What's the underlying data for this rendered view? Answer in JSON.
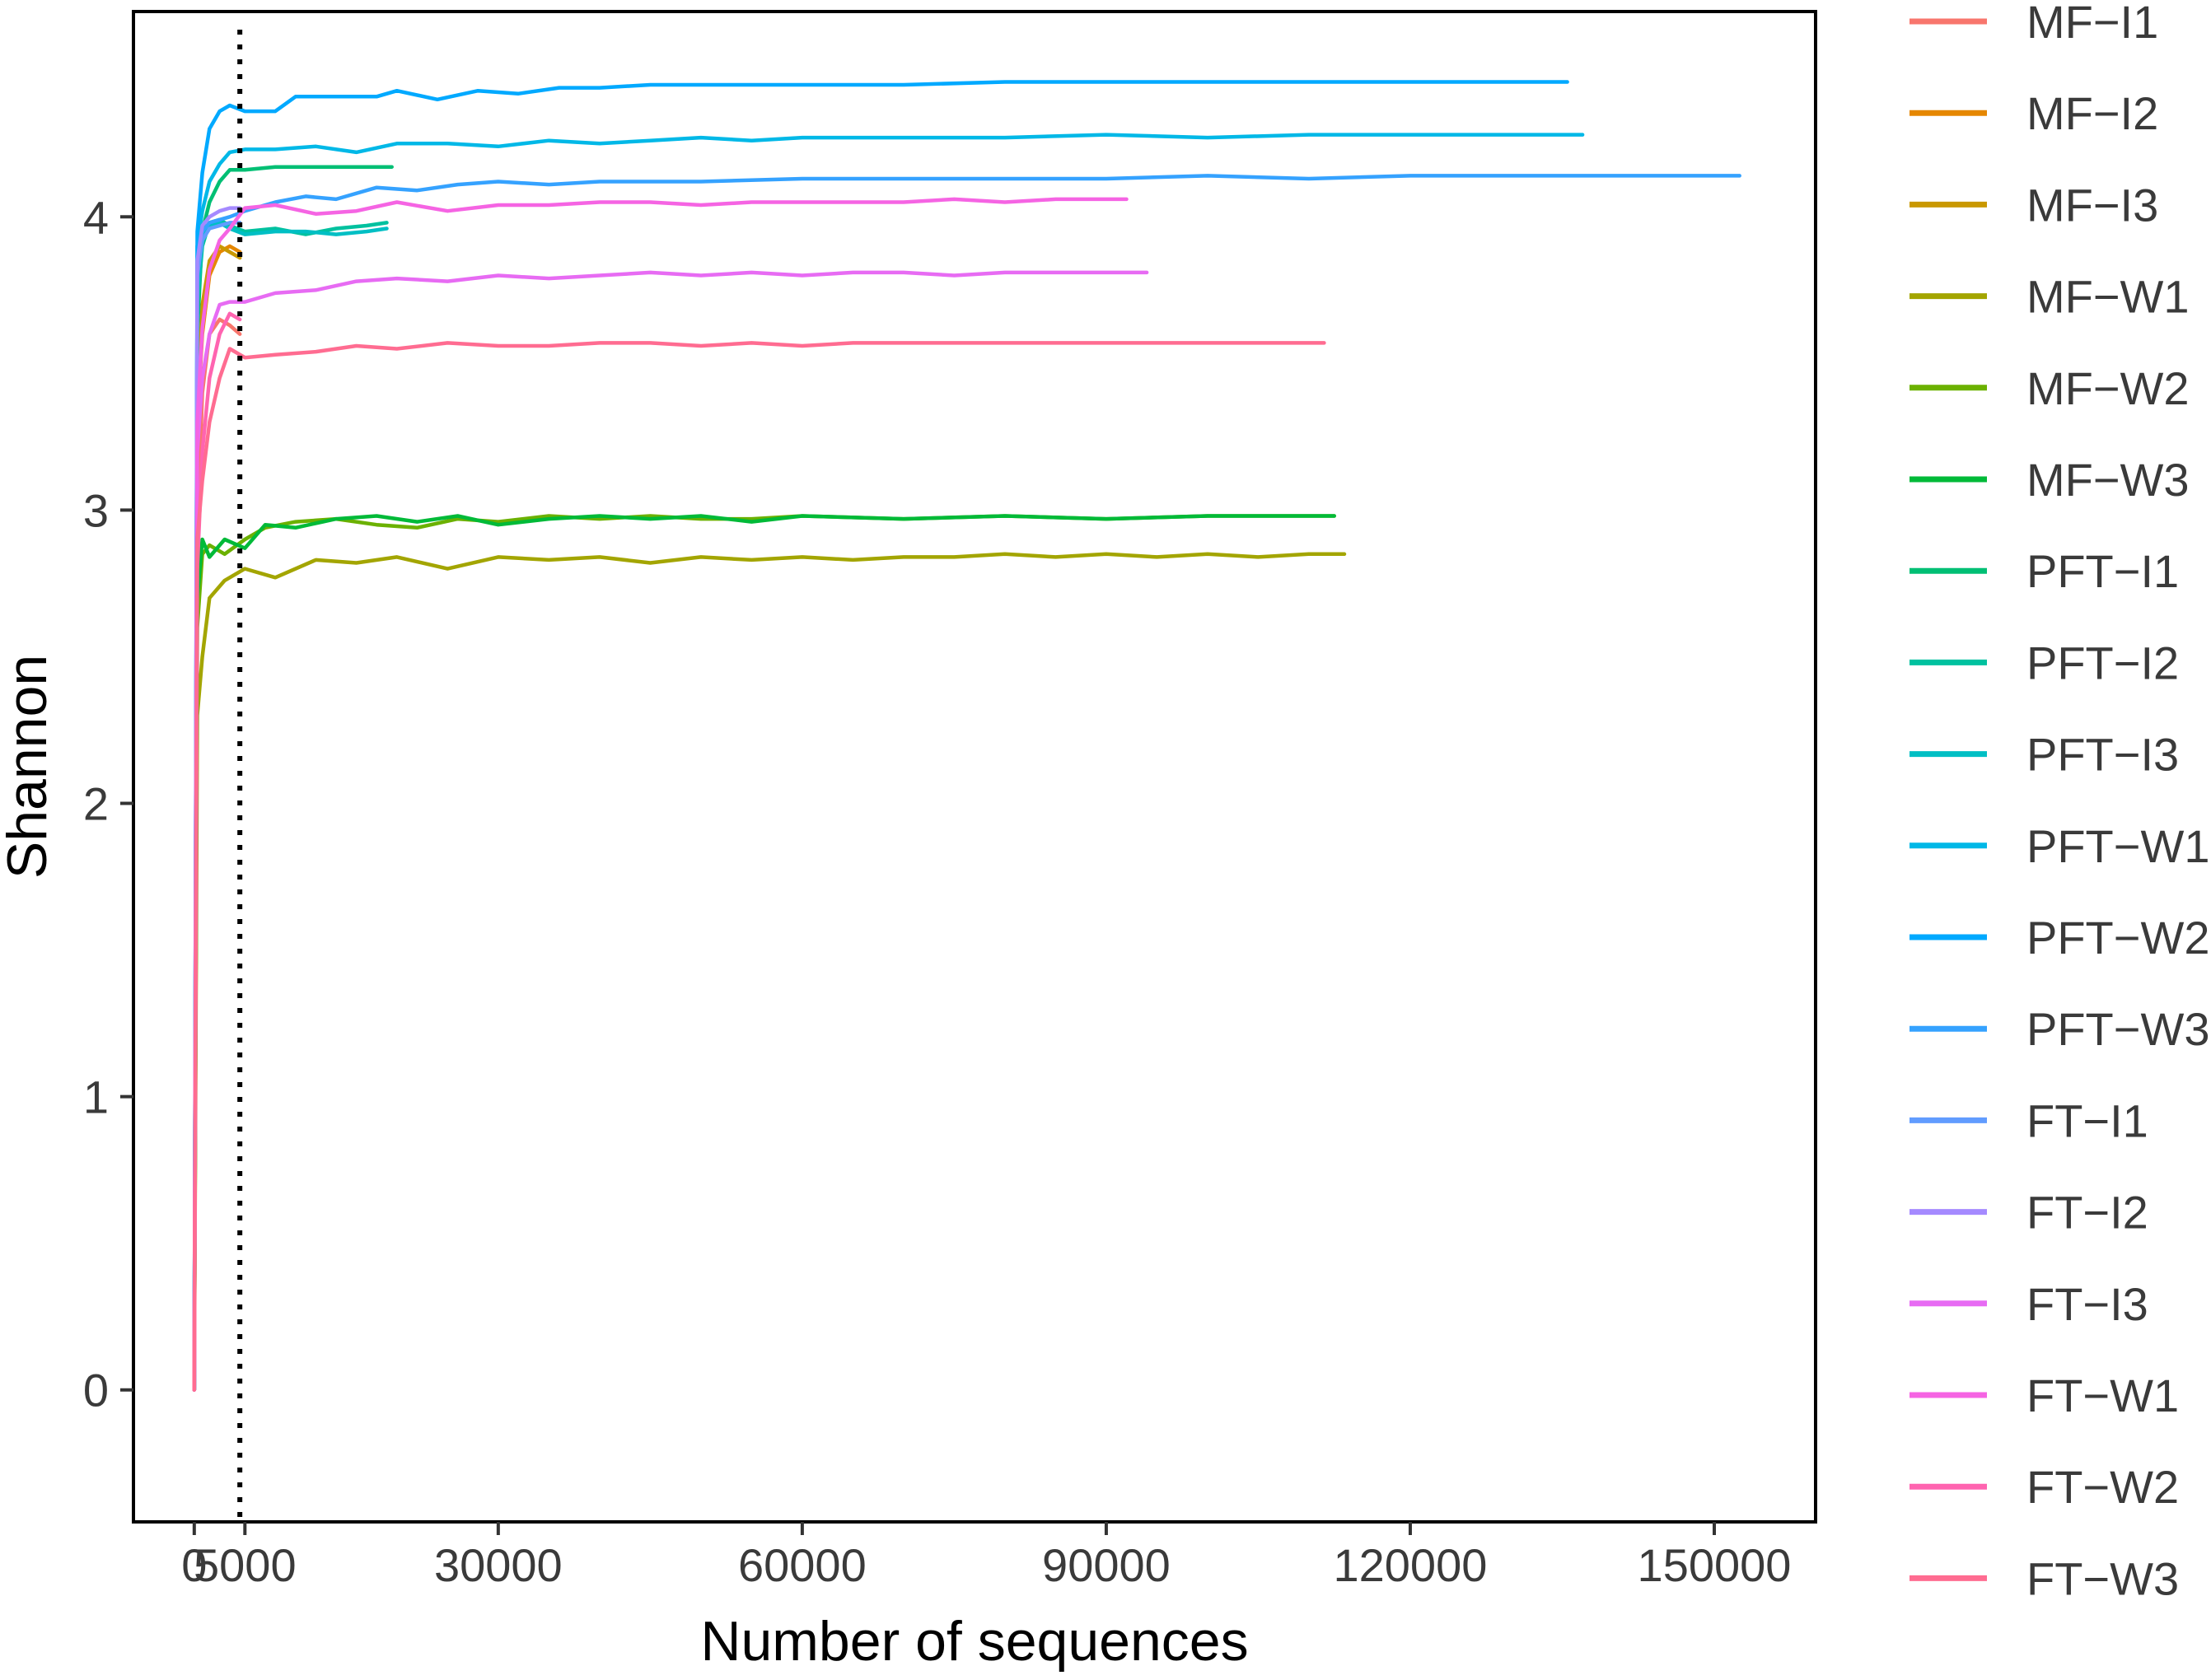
{
  "chart_data": {
    "type": "line",
    "title": "",
    "xlabel": "Number of sequences",
    "ylabel": "Shannon",
    "xlim": [
      -6000,
      160000
    ],
    "ylim": [
      -0.45,
      4.7
    ],
    "xticks": [
      0,
      5000,
      30000,
      60000,
      90000,
      120000,
      150000
    ],
    "xtick_labels": [
      "0",
      "5000",
      "30000",
      "60000",
      "90000",
      "120000",
      "150000"
    ],
    "yticks": [
      0,
      1,
      2,
      3,
      4
    ],
    "ytick_labels": [
      "0",
      "1",
      "2",
      "3",
      "4"
    ],
    "reference_line": {
      "x": 4500,
      "style": "dotted"
    },
    "grid": false,
    "legend": "right",
    "series": [
      {
        "name": "MF−I1",
        "color": "#F8766D",
        "x": [
          0,
          300,
          800,
          1500,
          2500,
          3500,
          4500
        ],
        "y": [
          0,
          2.9,
          3.4,
          3.6,
          3.65,
          3.63,
          3.6
        ]
      },
      {
        "name": "MF−I2",
        "color": "#E58700",
        "x": [
          0,
          300,
          800,
          1500,
          2500,
          3500,
          4500
        ],
        "y": [
          0,
          3.3,
          3.6,
          3.8,
          3.88,
          3.9,
          3.88
        ]
      },
      {
        "name": "MF−I3",
        "color": "#C99800",
        "x": [
          0,
          300,
          800,
          1500,
          2500,
          3500,
          4500
        ],
        "y": [
          0,
          3.35,
          3.7,
          3.85,
          3.9,
          3.88,
          3.86
        ]
      },
      {
        "name": "MF−W1",
        "color": "#A3A500",
        "x": [
          0,
          300,
          800,
          1500,
          3000,
          5000,
          8000,
          12000,
          16000,
          20000,
          25000,
          30000,
          35000,
          40000,
          45000,
          50000,
          55000,
          60000,
          65000,
          70000,
          75000,
          80000,
          85000,
          90000,
          95000,
          100000,
          105000,
          110000,
          113500
        ],
        "y": [
          0,
          2.3,
          2.5,
          2.7,
          2.76,
          2.8,
          2.77,
          2.83,
          2.82,
          2.84,
          2.8,
          2.84,
          2.83,
          2.84,
          2.82,
          2.84,
          2.83,
          2.84,
          2.83,
          2.84,
          2.84,
          2.85,
          2.84,
          2.85,
          2.84,
          2.85,
          2.84,
          2.85,
          2.85
        ]
      },
      {
        "name": "MF−W2",
        "color": "#6BB100",
        "x": [
          0,
          300,
          800,
          1500,
          3000,
          5000,
          7000,
          10000,
          14000,
          18000,
          22000,
          26000,
          30000,
          35000,
          40000,
          45000,
          50000,
          55000,
          60000,
          70000,
          80000,
          90000,
          100000,
          110000,
          112500
        ],
        "y": [
          0,
          2.6,
          2.85,
          2.88,
          2.85,
          2.9,
          2.94,
          2.96,
          2.97,
          2.95,
          2.94,
          2.97,
          2.96,
          2.98,
          2.97,
          2.98,
          2.97,
          2.97,
          2.98,
          2.97,
          2.98,
          2.97,
          2.98,
          2.98,
          2.98
        ]
      },
      {
        "name": "MF−W3",
        "color": "#00BA38",
        "x": [
          0,
          300,
          800,
          1500,
          3000,
          5000,
          7000,
          10000,
          14000,
          18000,
          22000,
          26000,
          30000,
          35000,
          40000,
          45000,
          50000,
          55000,
          60000,
          70000,
          80000,
          90000,
          100000,
          110000,
          112500
        ],
        "y": [
          0,
          2.7,
          2.9,
          2.84,
          2.9,
          2.87,
          2.95,
          2.94,
          2.97,
          2.98,
          2.96,
          2.98,
          2.95,
          2.97,
          2.98,
          2.97,
          2.98,
          2.96,
          2.98,
          2.97,
          2.98,
          2.97,
          2.98,
          2.98,
          2.98
        ]
      },
      {
        "name": "PFT−I1",
        "color": "#00BF74",
        "x": [
          0,
          300,
          800,
          1500,
          2500,
          3500,
          5000,
          8000,
          11000,
          14000,
          17000,
          19500
        ],
        "y": [
          0,
          3.6,
          3.95,
          4.05,
          4.12,
          4.16,
          4.16,
          4.17,
          4.17,
          4.17,
          4.17,
          4.17
        ]
      },
      {
        "name": "PFT−I2",
        "color": "#00C19F",
        "x": [
          0,
          300,
          800,
          1500,
          2500,
          3500,
          5000,
          8000,
          11000,
          14000,
          17000,
          19000
        ],
        "y": [
          0,
          3.7,
          3.9,
          3.98,
          3.99,
          3.97,
          3.95,
          3.96,
          3.94,
          3.96,
          3.97,
          3.98
        ]
      },
      {
        "name": "PFT−I3",
        "color": "#00BFC4",
        "x": [
          0,
          300,
          800,
          1500,
          2500,
          3500,
          5000,
          8000,
          11000,
          14000,
          17000,
          19000
        ],
        "y": [
          0,
          3.75,
          3.92,
          3.97,
          3.98,
          3.96,
          3.94,
          3.95,
          3.95,
          3.94,
          3.95,
          3.96
        ]
      },
      {
        "name": "PFT−W1",
        "color": "#00B8E7",
        "x": [
          0,
          300,
          800,
          1500,
          2500,
          3500,
          5000,
          8000,
          12000,
          16000,
          20000,
          25000,
          30000,
          35000,
          40000,
          45000,
          50000,
          55000,
          60000,
          70000,
          80000,
          90000,
          100000,
          110000,
          120000,
          130000,
          137000
        ],
        "y": [
          0,
          3.9,
          4.02,
          4.12,
          4.18,
          4.22,
          4.23,
          4.23,
          4.24,
          4.22,
          4.25,
          4.25,
          4.24,
          4.26,
          4.25,
          4.26,
          4.27,
          4.26,
          4.27,
          4.27,
          4.27,
          4.28,
          4.27,
          4.28,
          4.28,
          4.28,
          4.28
        ]
      },
      {
        "name": "PFT−W2",
        "color": "#00A9FF",
        "x": [
          0,
          300,
          800,
          1500,
          2500,
          3500,
          5000,
          8000,
          10000,
          14000,
          18000,
          20000,
          24000,
          28000,
          32000,
          36000,
          40000,
          45000,
          50000,
          60000,
          70000,
          80000,
          90000,
          100000,
          110000,
          120000,
          130000,
          135500
        ],
        "y": [
          0,
          3.95,
          4.15,
          4.3,
          4.36,
          4.38,
          4.36,
          4.36,
          4.41,
          4.41,
          4.41,
          4.43,
          4.4,
          4.43,
          4.42,
          4.44,
          4.44,
          4.45,
          4.45,
          4.45,
          4.45,
          4.46,
          4.46,
          4.46,
          4.46,
          4.46,
          4.46,
          4.46
        ]
      },
      {
        "name": "PFT−W3",
        "color": "#35A2FF",
        "x": [
          0,
          300,
          800,
          1500,
          2500,
          3500,
          5000,
          8000,
          11000,
          14000,
          18000,
          22000,
          26000,
          30000,
          35000,
          40000,
          45000,
          50000,
          60000,
          70000,
          80000,
          90000,
          100000,
          110000,
          120000,
          130000,
          140000,
          150000,
          152500
        ],
        "y": [
          0,
          3.85,
          3.95,
          3.98,
          3.99,
          4.0,
          4.02,
          4.05,
          4.07,
          4.06,
          4.1,
          4.09,
          4.11,
          4.12,
          4.11,
          4.12,
          4.12,
          4.12,
          4.13,
          4.13,
          4.13,
          4.13,
          4.14,
          4.13,
          4.14,
          4.14,
          4.14,
          4.14,
          4.14
        ]
      },
      {
        "name": "FT−I1",
        "color": "#619CFF",
        "x": [
          0,
          300,
          800,
          1500,
          2500,
          3500,
          4500
        ],
        "y": [
          0,
          3.8,
          3.92,
          3.96,
          3.97,
          3.98,
          3.98
        ]
      },
      {
        "name": "FT−I2",
        "color": "#A58AFF",
        "x": [
          0,
          300,
          800,
          1500,
          2500,
          3500,
          4500
        ],
        "y": [
          0,
          3.85,
          3.97,
          4.0,
          4.02,
          4.03,
          4.03
        ]
      },
      {
        "name": "FT−I3",
        "color": "#E76BF3",
        "x": [
          0,
          300,
          800,
          1500,
          2500,
          3500,
          5000,
          8000,
          12000,
          16000,
          20000,
          25000,
          30000,
          35000,
          40000,
          45000,
          50000,
          55000,
          60000,
          65000,
          70000,
          75000,
          80000,
          85000,
          90000,
          94000
        ],
        "y": [
          0,
          3.2,
          3.45,
          3.6,
          3.7,
          3.71,
          3.71,
          3.74,
          3.75,
          3.78,
          3.79,
          3.78,
          3.8,
          3.79,
          3.8,
          3.81,
          3.8,
          3.81,
          3.8,
          3.81,
          3.81,
          3.8,
          3.81,
          3.81,
          3.81,
          3.81
        ]
      },
      {
        "name": "FT−W1",
        "color": "#F564E3",
        "x": [
          0,
          300,
          800,
          1500,
          2500,
          3500,
          5000,
          8000,
          12000,
          16000,
          20000,
          25000,
          30000,
          35000,
          40000,
          45000,
          50000,
          55000,
          60000,
          65000,
          70000,
          75000,
          80000,
          85000,
          92000
        ],
        "y": [
          0,
          3.3,
          3.62,
          3.82,
          3.92,
          3.96,
          4.03,
          4.04,
          4.01,
          4.02,
          4.05,
          4.02,
          4.04,
          4.04,
          4.05,
          4.05,
          4.04,
          4.05,
          4.05,
          4.05,
          4.05,
          4.06,
          4.05,
          4.06,
          4.06
        ]
      },
      {
        "name": "FT−W2",
        "color": "#FF64B0",
        "x": [
          0,
          300,
          800,
          1500,
          2500,
          3500,
          4500
        ],
        "y": [
          0,
          2.8,
          3.2,
          3.45,
          3.6,
          3.67,
          3.65
        ]
      },
      {
        "name": "FT−W3",
        "color": "#FF6C91",
        "x": [
          0,
          300,
          800,
          1500,
          2500,
          3500,
          5000,
          8000,
          12000,
          16000,
          20000,
          25000,
          30000,
          35000,
          40000,
          45000,
          50000,
          55000,
          60000,
          65000,
          70000,
          75000,
          80000,
          85000,
          90000,
          95000,
          100000,
          105000,
          111500
        ],
        "y": [
          0,
          2.9,
          3.1,
          3.3,
          3.45,
          3.55,
          3.52,
          3.53,
          3.54,
          3.56,
          3.55,
          3.57,
          3.56,
          3.56,
          3.57,
          3.57,
          3.56,
          3.57,
          3.56,
          3.57,
          3.57,
          3.57,
          3.57,
          3.57,
          3.57,
          3.57,
          3.57,
          3.57,
          3.57
        ]
      }
    ]
  }
}
